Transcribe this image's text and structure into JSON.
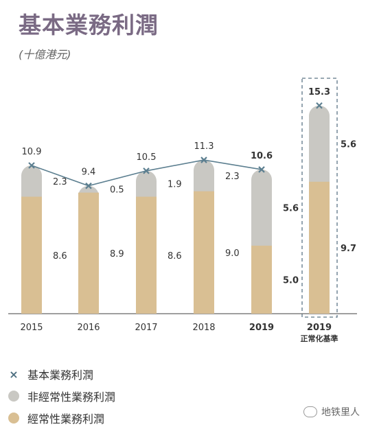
{
  "title": "基本業務利潤",
  "subtitle": "(十億港元)",
  "chart_data": {
    "type": "bar",
    "categories": [
      "2015",
      "2016",
      "2017",
      "2018",
      "2019",
      "2019"
    ],
    "category_sublabels": [
      "",
      "",
      "",
      "",
      "",
      "正常化基準"
    ],
    "bold_categories": [
      false,
      false,
      false,
      false,
      true,
      true
    ],
    "highlighted_index": 5,
    "stacked": true,
    "series": [
      {
        "name": "經常性業務利潤",
        "values": [
          8.6,
          8.9,
          8.6,
          9.0,
          5.0,
          9.7
        ],
        "color": "#d9bf93"
      },
      {
        "name": "非經常性業務利潤",
        "values": [
          2.3,
          0.5,
          1.9,
          2.3,
          5.6,
          5.6
        ],
        "color": "#c9c8c3"
      }
    ],
    "line": {
      "name": "基本業務利潤",
      "values": [
        10.9,
        9.4,
        10.5,
        11.3,
        10.6,
        null
      ],
      "color": "#5c7f90"
    },
    "totals": [
      10.9,
      9.4,
      10.5,
      11.3,
      10.6,
      15.3
    ],
    "ylim": [
      0,
      16.5
    ]
  },
  "legend": [
    {
      "marker": "×",
      "label": "基本業務利潤",
      "color": "#4d6f80"
    },
    {
      "marker": "circle",
      "label": "非經常性業務利潤",
      "color": "#c9c8c3"
    },
    {
      "marker": "circle",
      "label": "經常性業務利潤",
      "color": "#d9bf93"
    }
  ],
  "watermark": "地铁里人"
}
